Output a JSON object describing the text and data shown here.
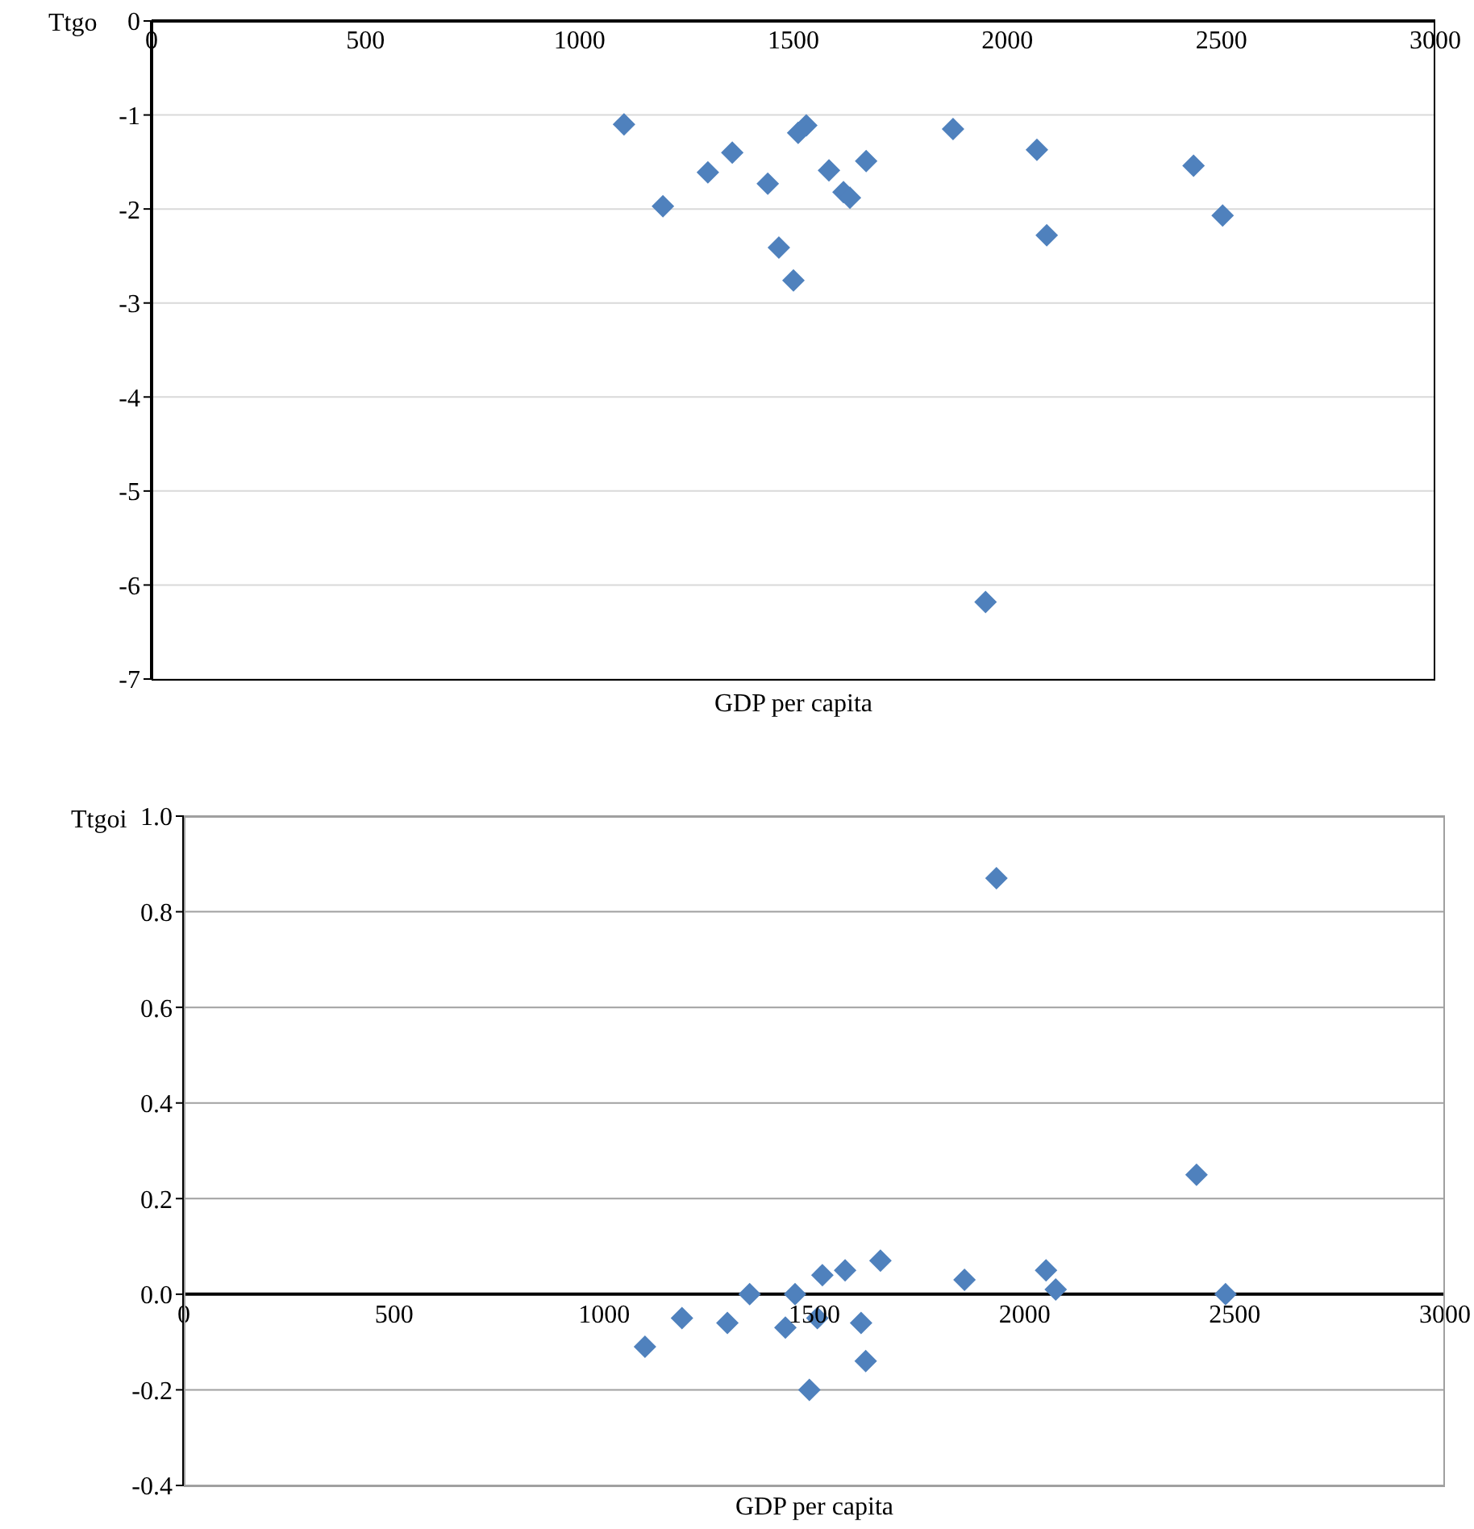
{
  "chart_data": [
    {
      "type": "scatter",
      "xlabel": "GDP per capita",
      "ylabel": "Ttgo",
      "xlim": [
        0,
        3000
      ],
      "xticks": [
        0,
        500,
        1000,
        1500,
        2000,
        2500,
        3000
      ],
      "ylim": [
        -7,
        0
      ],
      "yticks": [
        -7,
        -6,
        -5,
        -4,
        -3,
        -2,
        -1,
        0
      ],
      "grid": "y",
      "marker": "diamond",
      "series": [
        {
          "color": "#4f81bd",
          "x": [
            1104,
            1195,
            1300,
            1357,
            1440,
            1466,
            1500,
            1511,
            1530,
            1583,
            1617,
            1632,
            1670,
            1873,
            1949,
            2069,
            2092,
            2435,
            2503
          ],
          "values": [
            -1.1,
            -1.97,
            -1.61,
            -1.4,
            -1.73,
            -2.41,
            -2.76,
            -1.19,
            -1.11,
            -1.59,
            -1.82,
            -1.88,
            -1.49,
            -1.15,
            -6.18,
            -1.37,
            -2.28,
            -1.54,
            -2.07
          ]
        }
      ]
    },
    {
      "type": "scatter",
      "xlabel": "GDP per capita",
      "ylabel": "Ttgoi",
      "xlim": [
        0,
        3000
      ],
      "xticks": [
        0,
        500,
        1000,
        1500,
        2000,
        2500,
        3000
      ],
      "ylim": [
        -0.4,
        1.0
      ],
      "yticks": [
        -0.4,
        -0.2,
        {
          "value": 0,
          "label": "0.0"
        },
        0.2,
        0.4,
        0.6,
        0.8,
        {
          "value": 1,
          "label": "1.0"
        }
      ],
      "grid": "y",
      "marker": "diamond",
      "series": [
        {
          "color": "#4f81bd",
          "x": [
            1097,
            1185,
            1293,
            1346,
            1431,
            1454,
            1488,
            1507,
            1519,
            1573,
            1611,
            1622,
            1657,
            1857,
            1933,
            2051,
            2074,
            2409,
            2478
          ],
          "values": [
            -0.11,
            -0.05,
            -0.06,
            0.0,
            -0.07,
            0.0,
            -0.2,
            -0.05,
            0.04,
            0.05,
            -0.06,
            -0.14,
            0.07,
            0.03,
            0.87,
            0.05,
            0.01,
            0.25,
            0.0
          ]
        }
      ]
    }
  ]
}
